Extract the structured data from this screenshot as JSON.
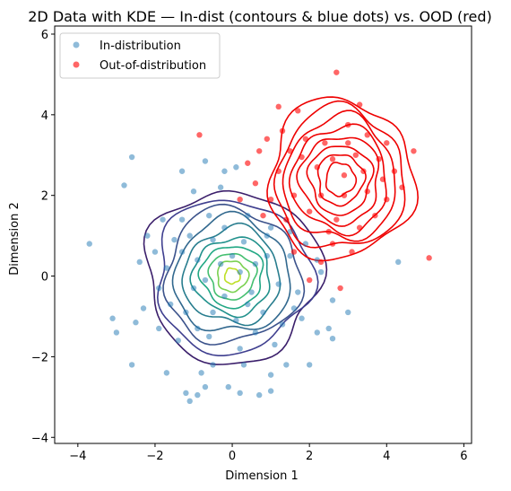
{
  "chart_data": {
    "type": "scatter",
    "title": "2D Data with KDE — In-dist (contours & blue dots) vs. OOD (red)",
    "xlabel": "Dimension 1",
    "ylabel": "Dimension 2",
    "xlim": [
      -4.6,
      6.2
    ],
    "ylim": [
      -4.15,
      6.2
    ],
    "xticks": [
      -4,
      -2,
      0,
      2,
      4,
      6
    ],
    "yticks": [
      -4,
      -2,
      0,
      2,
      4,
      6
    ],
    "grid": false,
    "legend_position": "top-left",
    "series": [
      {
        "name": "In-distribution",
        "color": "#1f77b4",
        "alpha": 0.5,
        "points": [
          [
            -3.7,
            0.8
          ],
          [
            -2.6,
            2.95
          ],
          [
            -2.8,
            2.25
          ],
          [
            -2.6,
            -2.2
          ],
          [
            -1.7,
            -2.4
          ],
          [
            -3.1,
            -1.05
          ],
          [
            -3.0,
            -1.4
          ],
          [
            -2.5,
            -1.15
          ],
          [
            -2.3,
            -0.8
          ],
          [
            -2.4,
            0.35
          ],
          [
            -2.2,
            1.0
          ],
          [
            -2.0,
            0.6
          ],
          [
            -1.9,
            -1.3
          ],
          [
            -1.2,
            -2.9
          ],
          [
            -1.1,
            -3.1
          ],
          [
            -0.9,
            -2.95
          ],
          [
            -0.8,
            -2.4
          ],
          [
            -0.5,
            -2.2
          ],
          [
            -0.7,
            -2.75
          ],
          [
            -0.1,
            -2.75
          ],
          [
            0.2,
            -2.9
          ],
          [
            0.3,
            -2.2
          ],
          [
            0.7,
            -2.95
          ],
          [
            1.0,
            -2.85
          ],
          [
            1.0,
            -2.45
          ],
          [
            1.4,
            -2.2
          ],
          [
            2.0,
            -2.2
          ],
          [
            -1.3,
            2.6
          ],
          [
            -1.0,
            2.1
          ],
          [
            -0.7,
            2.85
          ],
          [
            -0.3,
            2.2
          ],
          [
            -0.2,
            2.6
          ],
          [
            0.1,
            2.7
          ],
          [
            -1.3,
            1.4
          ],
          [
            -0.6,
            1.5
          ],
          [
            0.4,
            1.5
          ],
          [
            1.0,
            1.2
          ],
          [
            1.5,
            1.1
          ],
          [
            1.9,
            0.8
          ],
          [
            2.2,
            0.4
          ],
          [
            2.3,
            0.1
          ],
          [
            2.6,
            -0.6
          ],
          [
            2.5,
            -1.3
          ],
          [
            2.6,
            -1.55
          ],
          [
            2.2,
            -1.4
          ],
          [
            1.8,
            -1.05
          ],
          [
            1.1,
            -1.7
          ],
          [
            0.2,
            -1.8
          ],
          [
            -0.6,
            -1.5
          ],
          [
            -1.2,
            -0.9
          ],
          [
            -1.9,
            -0.3
          ],
          [
            -1.7,
            0.2
          ],
          [
            -1.5,
            0.9
          ],
          [
            -0.9,
            0.4
          ],
          [
            -0.5,
            0.9
          ],
          [
            0.3,
            0.85
          ],
          [
            0.9,
            0.5
          ],
          [
            1.2,
            -0.2
          ],
          [
            0.8,
            -0.9
          ],
          [
            0.1,
            -1.1
          ],
          [
            -0.5,
            -0.9
          ],
          [
            -1.0,
            -0.3
          ],
          [
            -0.3,
            0.3
          ],
          [
            0.2,
            0.1
          ],
          [
            0.5,
            -0.4
          ],
          [
            -0.2,
            -0.5
          ],
          [
            0.0,
            0.5
          ],
          [
            0.6,
            0.3
          ],
          [
            -0.7,
            -0.1
          ],
          [
            0.4,
            -0.7
          ],
          [
            -1.3,
            0.6
          ],
          [
            1.5,
            0.5
          ],
          [
            1.7,
            -0.4
          ],
          [
            -1.6,
            -0.7
          ],
          [
            -0.9,
            -1.3
          ],
          [
            0.6,
            -1.4
          ],
          [
            1.3,
            -1.2
          ],
          [
            -0.2,
            1.2
          ],
          [
            0.9,
            1.0
          ],
          [
            -1.1,
            1.0
          ],
          [
            3.0,
            -0.9
          ],
          [
            4.3,
            0.35
          ],
          [
            -1.4,
            -1.6
          ],
          [
            -1.8,
            1.4
          ],
          [
            1.6,
            -0.8
          ]
        ]
      },
      {
        "name": "Out-of-distribution",
        "color": "#ff0000",
        "alpha": 0.6,
        "points": [
          [
            2.7,
            5.05
          ],
          [
            3.3,
            4.25
          ],
          [
            4.7,
            3.1
          ],
          [
            5.1,
            0.45
          ],
          [
            1.2,
            4.2
          ],
          [
            1.7,
            4.1
          ],
          [
            -0.85,
            3.5
          ],
          [
            1.3,
            3.6
          ],
          [
            0.9,
            3.4
          ],
          [
            0.7,
            3.1
          ],
          [
            3.0,
            3.75
          ],
          [
            3.5,
            3.5
          ],
          [
            4.0,
            3.3
          ],
          [
            2.4,
            3.3
          ],
          [
            3.2,
            3.0
          ],
          [
            3.8,
            2.9
          ],
          [
            4.2,
            2.6
          ],
          [
            2.9,
            2.5
          ],
          [
            2.2,
            2.7
          ],
          [
            1.8,
            2.95
          ],
          [
            1.2,
            2.6
          ],
          [
            0.6,
            2.3
          ],
          [
            0.2,
            1.9
          ],
          [
            1.0,
            1.9
          ],
          [
            1.6,
            2.0
          ],
          [
            2.3,
            2.0
          ],
          [
            2.9,
            2.0
          ],
          [
            3.5,
            2.1
          ],
          [
            4.0,
            1.9
          ],
          [
            3.7,
            1.5
          ],
          [
            3.3,
            1.2
          ],
          [
            2.7,
            1.4
          ],
          [
            2.0,
            1.6
          ],
          [
            1.4,
            1.4
          ],
          [
            0.8,
            1.5
          ],
          [
            2.6,
            0.8
          ],
          [
            3.1,
            0.6
          ],
          [
            2.3,
            0.35
          ],
          [
            2.8,
            -0.3
          ],
          [
            2.0,
            -0.1
          ],
          [
            1.6,
            0.6
          ],
          [
            3.4,
            2.6
          ],
          [
            2.6,
            2.9
          ],
          [
            1.9,
            3.4
          ],
          [
            4.4,
            2.2
          ],
          [
            0.4,
            2.8
          ],
          [
            1.5,
            3.1
          ],
          [
            3.9,
            2.4
          ],
          [
            2.5,
            1.1
          ],
          [
            3.0,
            3.3
          ]
        ]
      }
    ],
    "kde_contours": {
      "in_distribution": {
        "center": [
          0.0,
          0.0
        ],
        "sd": [
          1.0,
          0.95
        ],
        "levels": [
          2.25,
          2.0,
          1.75,
          1.5,
          1.25,
          1.0,
          0.8,
          0.6,
          0.4,
          0.2
        ],
        "colors": [
          "#3b1f6b",
          "#3f3f8f",
          "#3b528b",
          "#31688e",
          "#287d8e",
          "#21918c",
          "#22a884",
          "#44bf70",
          "#7ad151",
          "#bddf26"
        ]
      },
      "out_of_distribution": {
        "center": [
          2.8,
          2.4
        ],
        "sd": [
          0.85,
          0.9
        ],
        "levels": [
          2.2,
          1.95,
          1.7,
          1.45,
          1.2,
          0.95,
          0.7,
          0.45
        ],
        "color": "#ee0000"
      }
    }
  },
  "legend": {
    "in_label": "In-distribution",
    "ood_label": "Out-of-distribution"
  }
}
